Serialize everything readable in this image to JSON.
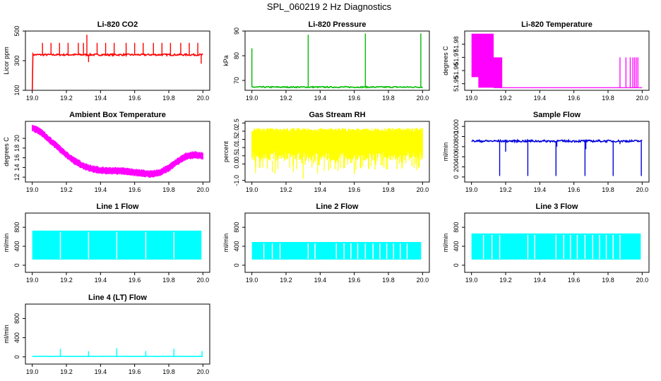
{
  "title": "SPL_060219  2 Hz Diagnostics",
  "chart_data": [
    {
      "type": "line",
      "title": "Li-820 CO2",
      "xlabel": "",
      "ylabel": "Licor ppm",
      "color": "#ff0000",
      "xlim": [
        18.96,
        20.04
      ],
      "ylim": [
        100,
        500
      ],
      "xticks": [
        "19.0",
        "19.2",
        "19.4",
        "19.6",
        "19.8",
        "20.0"
      ],
      "yticks": [
        "100",
        "300",
        "500"
      ],
      "ytick_values": [
        100,
        300,
        500
      ],
      "base": 340,
      "noise": 6,
      "start_value": 100,
      "spikes": [
        {
          "x": 19.06,
          "y": 420
        },
        {
          "x": 19.11,
          "y": 420
        },
        {
          "x": 19.16,
          "y": 420
        },
        {
          "x": 19.21,
          "y": 420
        },
        {
          "x": 19.27,
          "y": 420
        },
        {
          "x": 19.3,
          "y": 420
        },
        {
          "x": 19.32,
          "y": 475
        },
        {
          "x": 19.38,
          "y": 420
        },
        {
          "x": 19.43,
          "y": 420
        },
        {
          "x": 19.48,
          "y": 420
        },
        {
          "x": 19.55,
          "y": 420
        },
        {
          "x": 19.6,
          "y": 420
        },
        {
          "x": 19.65,
          "y": 420
        },
        {
          "x": 19.71,
          "y": 420
        },
        {
          "x": 19.76,
          "y": 420
        },
        {
          "x": 19.81,
          "y": 420
        },
        {
          "x": 19.87,
          "y": 420
        },
        {
          "x": 19.92,
          "y": 420
        },
        {
          "x": 19.97,
          "y": 420
        }
      ],
      "dips": [
        {
          "x": 19.33,
          "y": 290
        },
        {
          "x": 19.99,
          "y": 280
        }
      ]
    },
    {
      "type": "line",
      "title": "Li-820 Pressure",
      "xlabel": "",
      "ylabel": "kPa",
      "color": "#00bb00",
      "xlim": [
        18.96,
        20.04
      ],
      "ylim": [
        66,
        90
      ],
      "xticks": [
        "19.0",
        "19.2",
        "19.4",
        "19.6",
        "19.8",
        "20.0"
      ],
      "yticks": [
        "70",
        "80",
        "90"
      ],
      "ytick_values": [
        70,
        80,
        90
      ],
      "base": 67.3,
      "noise": 0.25,
      "spikes": [
        {
          "x": 19.0,
          "y": 83
        },
        {
          "x": 19.33,
          "y": 88.5
        },
        {
          "x": 19.665,
          "y": 89
        },
        {
          "x": 19.99,
          "y": 89
        }
      ],
      "dips": []
    },
    {
      "type": "step",
      "title": "Li-820 Temperature",
      "xlabel": "",
      "ylabel": "degrees C",
      "color": "#ff00ff",
      "xlim": [
        18.96,
        20.04
      ],
      "ylim": [
        51.945,
        51.99
      ],
      "xticks": [
        "19.0",
        "19.2",
        "19.4",
        "19.6",
        "19.8",
        "20.0"
      ],
      "yticks": [
        "51.95",
        "51.96",
        "51.97",
        "51.98"
      ],
      "ytick_values": [
        51.95,
        51.96,
        51.97,
        51.98
      ],
      "blocks": [
        {
          "x0": 19.0,
          "x1": 19.13,
          "low": 51.955,
          "high": 51.988
        },
        {
          "x0": 19.04,
          "x1": 19.18,
          "low": 51.947,
          "high": 51.97
        }
      ],
      "base": 51.947,
      "spikes": [
        {
          "x": 19.87,
          "y": 51.97
        },
        {
          "x": 19.905,
          "y": 51.97
        },
        {
          "x": 19.93,
          "y": 51.97
        },
        {
          "x": 19.945,
          "y": 51.97
        },
        {
          "x": 19.955,
          "y": 51.97
        },
        {
          "x": 19.965,
          "y": 51.97
        },
        {
          "x": 19.975,
          "y": 51.97
        }
      ]
    },
    {
      "type": "band",
      "title": "Ambient Box Temperature",
      "xlabel": "",
      "ylabel": "degrees C",
      "color": "#ff00ff",
      "xlim": [
        18.96,
        20.04
      ],
      "ylim": [
        11,
        23.5
      ],
      "xticks": [
        "19.0",
        "19.2",
        "19.4",
        "19.6",
        "19.8",
        "20.0"
      ],
      "yticks": [
        "12",
        "14",
        "16",
        "18",
        "20"
      ],
      "ytick_values": [
        12,
        14,
        16,
        18,
        20
      ],
      "curve": [
        [
          19.0,
          22.2
        ],
        [
          19.05,
          21.3
        ],
        [
          19.1,
          19.7
        ],
        [
          19.15,
          18.2
        ],
        [
          19.2,
          16.6
        ],
        [
          19.25,
          15.3
        ],
        [
          19.3,
          14.3
        ],
        [
          19.35,
          13.7
        ],
        [
          19.4,
          13.4
        ],
        [
          19.45,
          13.3
        ],
        [
          19.5,
          13.3
        ],
        [
          19.55,
          13.2
        ],
        [
          19.6,
          13.0
        ],
        [
          19.65,
          12.8
        ],
        [
          19.7,
          12.6
        ],
        [
          19.75,
          13.0
        ],
        [
          19.8,
          13.9
        ],
        [
          19.85,
          15.2
        ],
        [
          19.9,
          16.3
        ],
        [
          19.95,
          16.6
        ],
        [
          20.0,
          16.4
        ]
      ],
      "width": 1.6
    },
    {
      "type": "band",
      "title": "Gas Stream RH",
      "xlabel": "",
      "ylabel": "percent",
      "color": "#ffff00",
      "xlim": [
        18.96,
        20.04
      ],
      "ylim": [
        -1.1,
        2.6
      ],
      "xticks": [
        "19.0",
        "19.2",
        "19.4",
        "19.6",
        "19.8",
        "20.0"
      ],
      "yticks": [
        "-1.0",
        "0.0",
        "0.5",
        "1.0",
        "1.5",
        "2.0",
        "2.5"
      ],
      "ytick_values": [
        -1.0,
        0.0,
        0.5,
        1.0,
        1.5,
        2.0,
        2.5
      ],
      "curve": [
        [
          19.0,
          1.25
        ],
        [
          20.0,
          1.25
        ]
      ],
      "upper": 2.2,
      "lower": 0.2,
      "deep_dips": [
        {
          "x": 19.3,
          "y": -0.9
        },
        {
          "x": 19.6,
          "y": -0.6
        },
        {
          "x": 19.12,
          "y": -0.5
        },
        {
          "x": 19.45,
          "y": -0.4
        },
        {
          "x": 19.85,
          "y": -0.3
        }
      ]
    },
    {
      "type": "line",
      "title": "Sample Flow",
      "xlabel": "",
      "ylabel": "ml/min",
      "color": "#0000dd",
      "xlim": [
        18.96,
        20.04
      ],
      "ylim": [
        -100,
        1100
      ],
      "xticks": [
        "19.0",
        "19.2",
        "19.4",
        "19.6",
        "19.8",
        "20.0"
      ],
      "yticks": [
        "0",
        "200",
        "400",
        "600",
        "800",
        "1000"
      ],
      "ytick_values": [
        0,
        200,
        400,
        600,
        800,
        1000
      ],
      "base": 710,
      "noise": 20,
      "spikes": [],
      "dips": [
        {
          "x": 19.165,
          "y": 20
        },
        {
          "x": 19.33,
          "y": 20
        },
        {
          "x": 19.495,
          "y": 20
        },
        {
          "x": 19.665,
          "y": 20
        },
        {
          "x": 19.83,
          "y": 20
        },
        {
          "x": 19.995,
          "y": 20
        },
        {
          "x": 19.2,
          "y": 500
        },
        {
          "x": 19.5,
          "y": 600
        },
        {
          "x": 19.67,
          "y": 550
        },
        {
          "x": 19.87,
          "y": 650
        }
      ]
    },
    {
      "type": "flow",
      "title": "Line 1 Flow",
      "xlabel": "",
      "ylabel": "ml/min",
      "color": "#00ffff",
      "xlim": [
        18.96,
        20.04
      ],
      "ylim": [
        -150,
        1100
      ],
      "xticks": [
        "19.0",
        "19.2",
        "19.4",
        "19.6",
        "19.8",
        "20.0"
      ],
      "yticks": [
        "0",
        "400",
        "800"
      ],
      "ytick_values": [
        0,
        400,
        800
      ],
      "low": 120,
      "high": 730,
      "gaps": [
        19.165,
        19.33,
        19.495,
        19.665,
        19.83,
        19.995
      ]
    },
    {
      "type": "flow",
      "title": "Line 2 Flow",
      "xlabel": "",
      "ylabel": "ml/min",
      "color": "#00ffff",
      "xlim": [
        18.96,
        20.04
      ],
      "ylim": [
        -150,
        1100
      ],
      "xticks": [
        "19.0",
        "19.2",
        "19.4",
        "19.6",
        "19.8",
        "20.0"
      ],
      "yticks": [
        "0",
        "400",
        "800"
      ],
      "ytick_values": [
        0,
        400,
        800
      ],
      "low": 120,
      "high": 490,
      "gaps": [
        19.07,
        19.12,
        19.165,
        19.33,
        19.37,
        19.495,
        19.54,
        19.58,
        19.62,
        19.665,
        19.71,
        19.75,
        19.79,
        19.83,
        19.87,
        19.91
      ]
    },
    {
      "type": "flow",
      "title": "Line 3 Flow",
      "xlabel": "",
      "ylabel": "ml/min",
      "color": "#00ffff",
      "xlim": [
        18.96,
        20.04
      ],
      "ylim": [
        -150,
        1100
      ],
      "xticks": [
        "19.0",
        "19.2",
        "19.4",
        "19.6",
        "19.8",
        "20.0"
      ],
      "yticks": [
        "0",
        "400",
        "800"
      ],
      "ytick_values": [
        0,
        400,
        800
      ],
      "low": 120,
      "high": 670,
      "gaps": [
        19.07,
        19.12,
        19.165,
        19.33,
        19.37,
        19.495,
        19.54,
        19.58,
        19.62,
        19.665,
        19.71,
        19.75,
        19.79,
        19.83,
        19.87
      ]
    },
    {
      "type": "line",
      "title": "Line 4 (LT) Flow",
      "xlabel": "",
      "ylabel": "ml/min",
      "color": "#00ffff",
      "xlim": [
        18.96,
        20.04
      ],
      "ylim": [
        -150,
        1100
      ],
      "xticks": [
        "19.0",
        "19.2",
        "19.4",
        "19.6",
        "19.8",
        "20.0"
      ],
      "yticks": [
        "0",
        "400",
        "800"
      ],
      "ytick_values": [
        0,
        400,
        800
      ],
      "base": 10,
      "noise": 2,
      "spikes": [
        {
          "x": 19.165,
          "y": 170
        },
        {
          "x": 19.33,
          "y": 120
        },
        {
          "x": 19.495,
          "y": 180
        },
        {
          "x": 19.665,
          "y": 120
        },
        {
          "x": 19.83,
          "y": 170
        },
        {
          "x": 19.995,
          "y": 120
        }
      ],
      "dips": []
    }
  ]
}
